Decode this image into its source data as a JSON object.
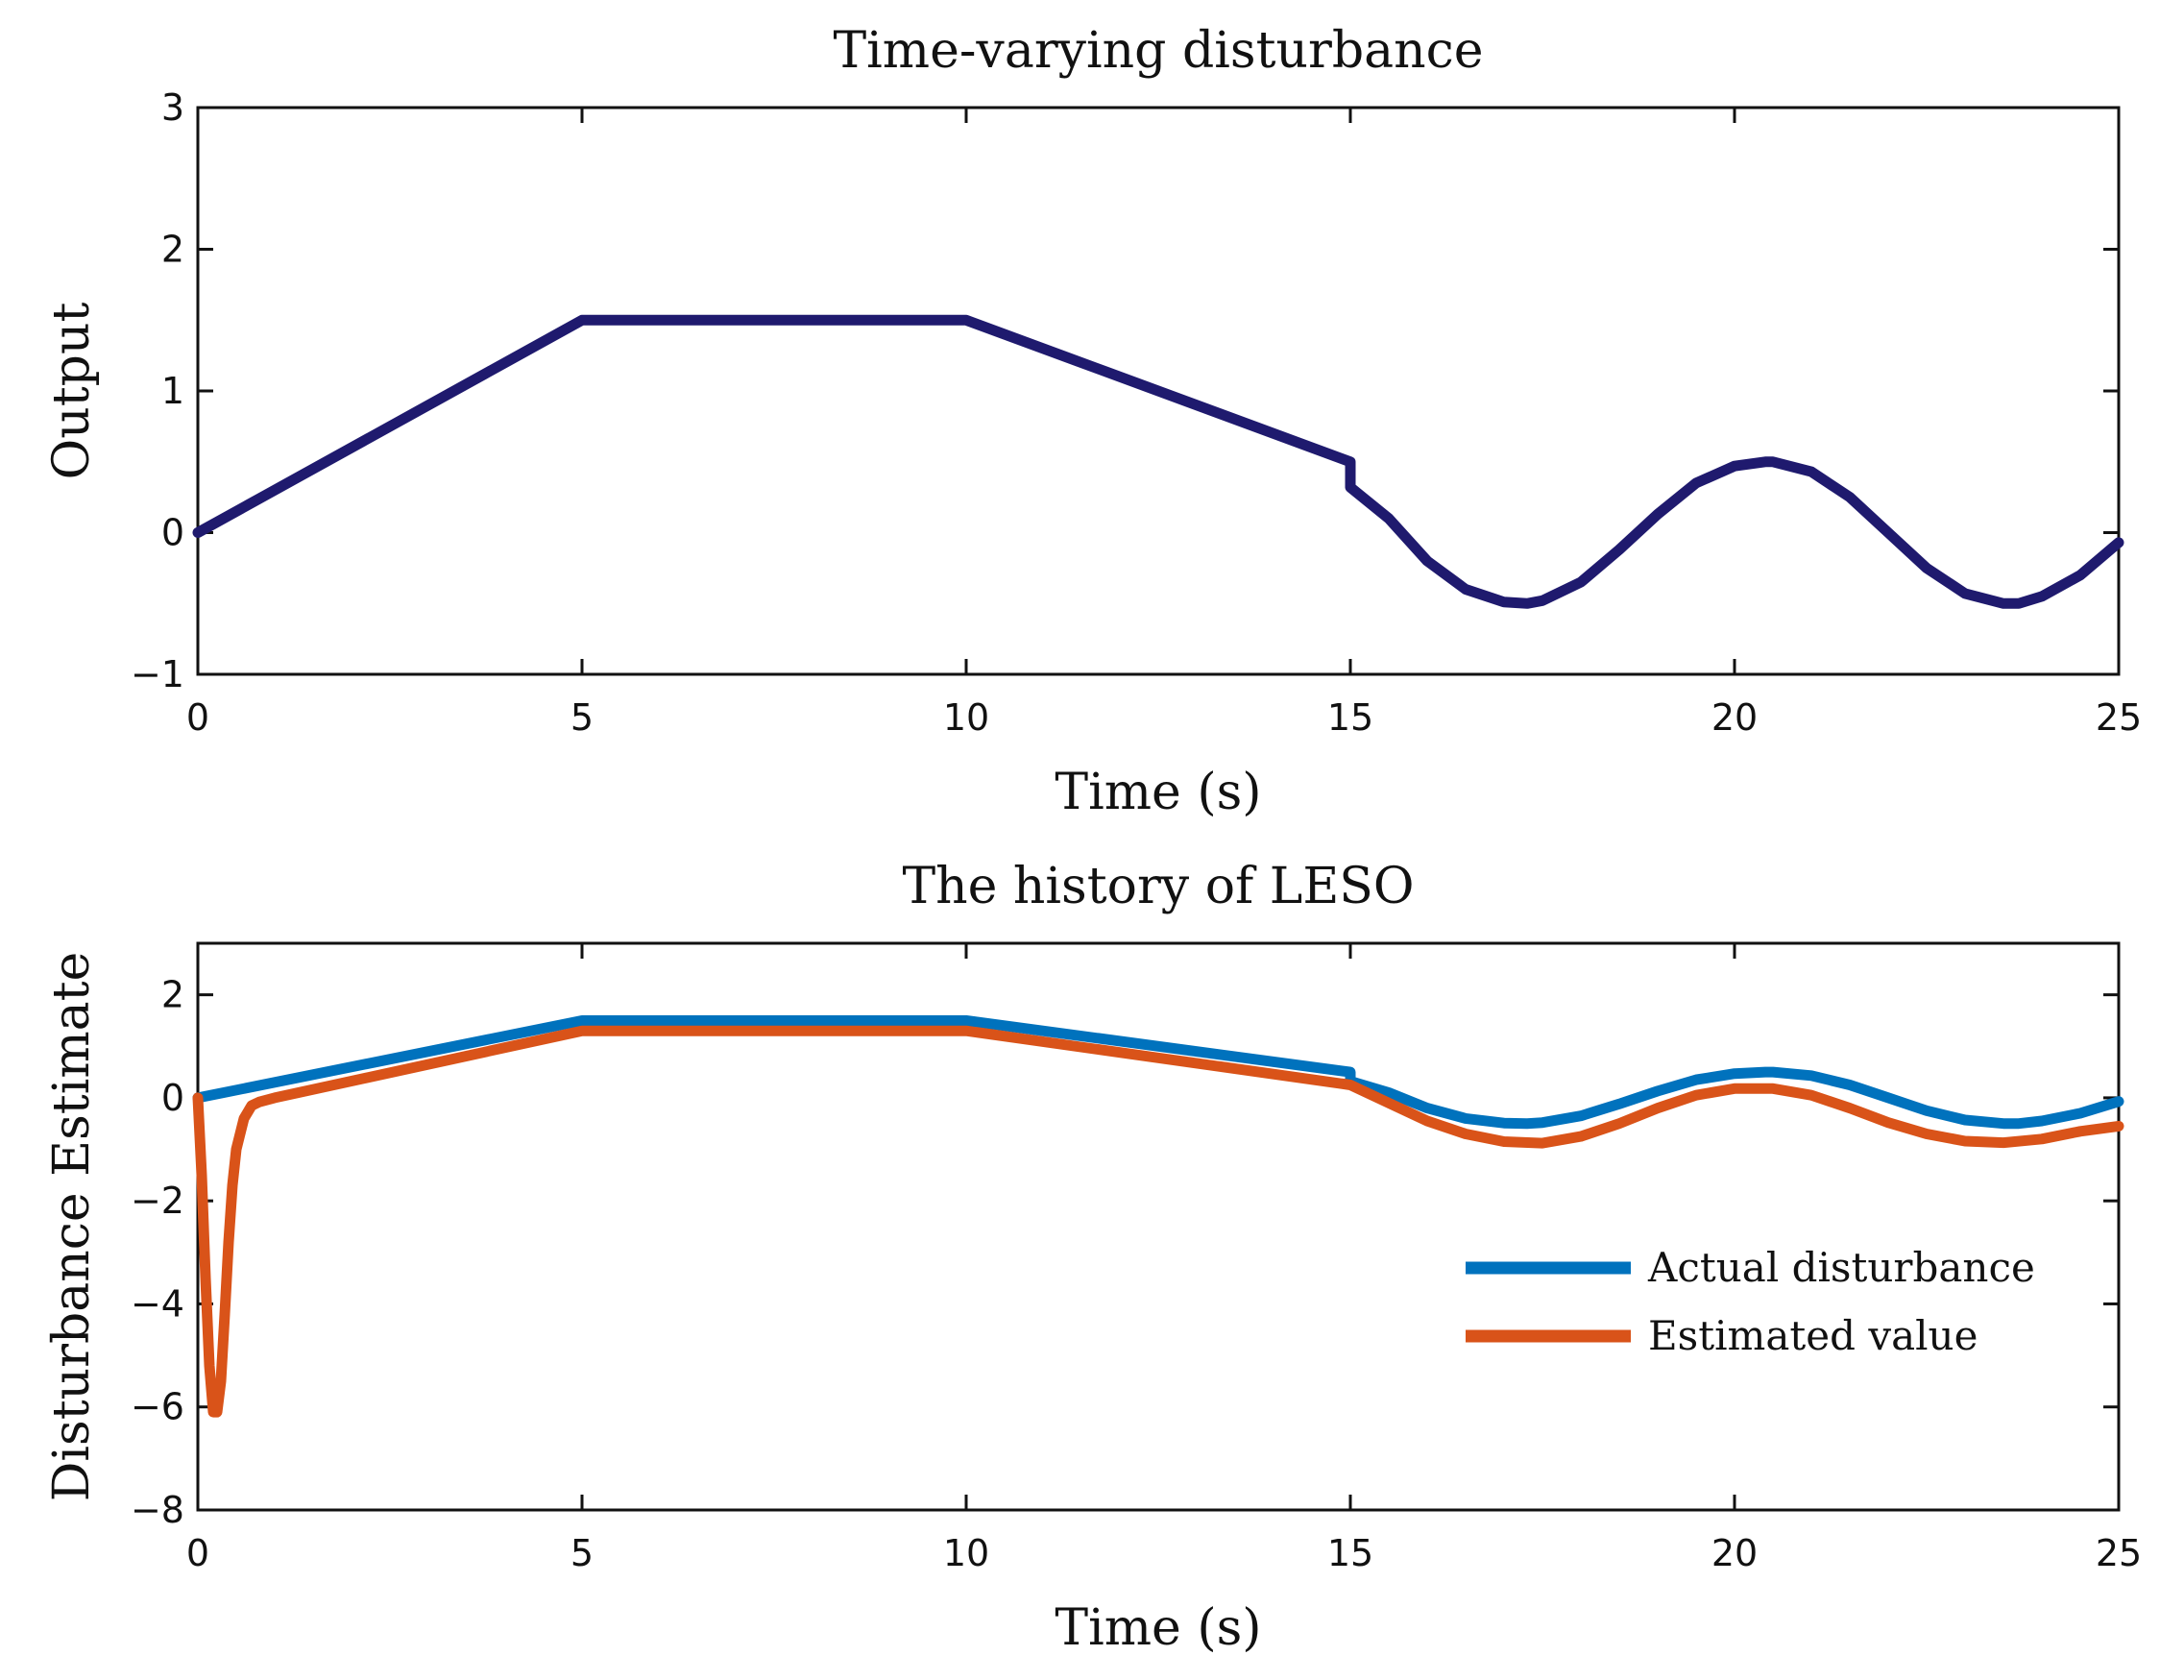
{
  "colors": {
    "upper_line": "#1f1a6e",
    "actual": "#0072bd",
    "estimated": "#d95319",
    "axes": "#111111"
  },
  "chart_data": [
    {
      "type": "line",
      "title": "Time-varying disturbance",
      "xlabel": "Time (s)",
      "ylabel": "Output",
      "xlim": [
        0,
        25
      ],
      "ylim": [
        -1,
        3
      ],
      "xticks": [
        0,
        5,
        10,
        15,
        20,
        25
      ],
      "yticks": [
        -1,
        0,
        1,
        2,
        3
      ],
      "xtick_labels": [
        "0",
        "5",
        "10",
        "15",
        "20",
        "25"
      ],
      "ytick_labels": [
        "−1",
        "0",
        "1",
        "2",
        "3"
      ],
      "grid": false,
      "series": [
        {
          "color": "#1f1a6e",
          "x": [
            0,
            5,
            10,
            15,
            15,
            15.5,
            16,
            16.5,
            17,
            17.3,
            17.5,
            18,
            18.5,
            19,
            19.5,
            20,
            20.4,
            20.5,
            21,
            21.5,
            22,
            22.5,
            23,
            23.5,
            23.7,
            24,
            24.5,
            25
          ],
          "y": [
            0,
            1.5,
            1.5,
            0.5,
            0.32,
            0.1,
            -0.2,
            -0.4,
            -0.49,
            -0.5,
            -0.48,
            -0.35,
            -0.12,
            0.13,
            0.35,
            0.47,
            0.5,
            0.5,
            0.43,
            0.25,
            0.0,
            -0.25,
            -0.43,
            -0.5,
            -0.5,
            -0.45,
            -0.3,
            -0.07
          ]
        }
      ]
    },
    {
      "type": "line",
      "title": "The history of LESO",
      "xlabel": "Time (s)",
      "ylabel": "Disturbance Estimate",
      "xlim": [
        0,
        25
      ],
      "ylim": [
        -8,
        3
      ],
      "xticks": [
        0,
        5,
        10,
        15,
        20,
        25
      ],
      "yticks": [
        -8,
        -6,
        -4,
        -2,
        0,
        2
      ],
      "xtick_labels": [
        "0",
        "5",
        "10",
        "15",
        "20",
        "25"
      ],
      "ytick_labels": [
        "−8",
        "−6",
        "−4",
        "−2",
        "0",
        "2"
      ],
      "grid": false,
      "legend": "center-right",
      "series": [
        {
          "name": "Actual disturbance",
          "color": "#0072bd",
          "x": [
            0,
            5,
            10,
            15,
            15,
            15.5,
            16,
            16.5,
            17,
            17.3,
            17.5,
            18,
            18.5,
            19,
            19.5,
            20,
            20.4,
            20.5,
            21,
            21.5,
            22,
            22.5,
            23,
            23.5,
            23.7,
            24,
            24.5,
            25
          ],
          "y": [
            0,
            1.5,
            1.5,
            0.5,
            0.32,
            0.1,
            -0.2,
            -0.4,
            -0.49,
            -0.5,
            -0.48,
            -0.35,
            -0.12,
            0.13,
            0.35,
            0.47,
            0.5,
            0.5,
            0.43,
            0.25,
            0.0,
            -0.25,
            -0.43,
            -0.5,
            -0.5,
            -0.45,
            -0.3,
            -0.07
          ]
        },
        {
          "name": "Estimated value",
          "color": "#d95319",
          "x": [
            0,
            0.05,
            0.1,
            0.15,
            0.2,
            0.25,
            0.3,
            0.35,
            0.4,
            0.45,
            0.5,
            0.6,
            0.7,
            0.8,
            1.0,
            5,
            10,
            15,
            15.5,
            16,
            16.5,
            17,
            17.5,
            18,
            18.5,
            19,
            19.5,
            20,
            20.5,
            21,
            21.5,
            22,
            22.5,
            23,
            23.5,
            24,
            24.5,
            25
          ],
          "y": [
            0,
            -1.5,
            -3.5,
            -5.2,
            -6.1,
            -6.1,
            -5.5,
            -4.2,
            -2.8,
            -1.7,
            -1.0,
            -0.4,
            -0.15,
            -0.08,
            0,
            1.3,
            1.3,
            0.25,
            -0.1,
            -0.45,
            -0.7,
            -0.85,
            -0.88,
            -0.75,
            -0.5,
            -0.2,
            0.05,
            0.18,
            0.18,
            0.05,
            -0.2,
            -0.48,
            -0.7,
            -0.84,
            -0.87,
            -0.8,
            -0.65,
            -0.55
          ]
        }
      ]
    }
  ]
}
